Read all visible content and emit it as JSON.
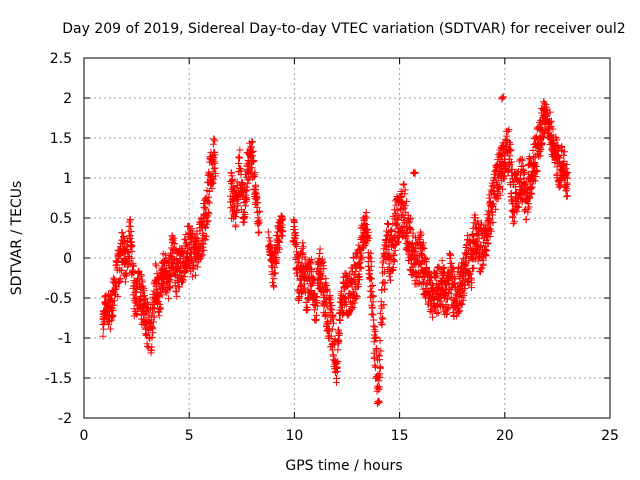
{
  "chart_data": {
    "type": "scatter",
    "title": "Day 209 of 2019, Sidereal Day-to-day VTEC variation (SDTVAR) for receiver oul2",
    "xlabel": "GPS time / hours",
    "ylabel": "SDTVAR / TECUs",
    "xlim": [
      0,
      25
    ],
    "ylim": [
      -2,
      2.5
    ],
    "grid": true,
    "marker": "+",
    "marker_color": "#ff0000",
    "x_ticks": [
      0,
      5,
      10,
      15,
      20,
      25
    ],
    "x_tick_labels": [
      "0",
      "5",
      "10",
      "15",
      "20",
      "25"
    ],
    "y_ticks": [
      -2,
      -1.5,
      -1,
      -0.5,
      0,
      0.5,
      1,
      1.5,
      2,
      2.5
    ],
    "y_tick_labels": [
      "-2",
      "-1.5",
      "-1",
      "-0.5",
      "0",
      "0.5",
      "1",
      "1.5",
      "2",
      "2.5"
    ],
    "series": [
      {
        "name": "SDTVAR",
        "trace_x": [
          0.9,
          1.0,
          1.2,
          1.4,
          1.6,
          1.8,
          2.0,
          2.2,
          2.4,
          2.6,
          2.8,
          3.0,
          3.2,
          3.4,
          3.6,
          3.8,
          4.0,
          4.2,
          4.4,
          4.6,
          4.8,
          5.0,
          5.2,
          5.4,
          5.6,
          5.8,
          6.0,
          6.2,
          7.0,
          7.2,
          7.4,
          7.6,
          7.8,
          8.0,
          8.2,
          8.3,
          8.8,
          9.0,
          9.2,
          9.4,
          10.0,
          10.2,
          10.4,
          10.6,
          10.8,
          11.0,
          11.2,
          11.4,
          11.6,
          11.8,
          12.0,
          12.2,
          12.4,
          12.6,
          12.8,
          13.0,
          13.2,
          13.4,
          13.6,
          13.8,
          14.0,
          14.2,
          14.4,
          14.6,
          14.8,
          15.0,
          15.2,
          15.4,
          15.6,
          15.8,
          16.0,
          16.2,
          16.4,
          16.6,
          16.8,
          17.0,
          17.2,
          17.4,
          17.6,
          17.8,
          18.0,
          18.2,
          18.4,
          18.6,
          18.8,
          19.0,
          19.2,
          19.4,
          19.6,
          19.8,
          20.0,
          20.2,
          20.4,
          20.6,
          20.8,
          21.0,
          21.2,
          21.4,
          21.6,
          21.8,
          22.0,
          22.6,
          22.8,
          23.0
        ],
        "trace_y": [
          -0.9,
          -0.6,
          -0.7,
          -0.5,
          -0.2,
          0.1,
          -0.1,
          0.3,
          -0.5,
          -0.4,
          -0.6,
          -0.8,
          -0.9,
          -0.3,
          -0.5,
          -0.1,
          -0.3,
          0.1,
          -0.2,
          -0.1,
          0.0,
          0.2,
          0.0,
          0.1,
          0.3,
          0.5,
          1.0,
          1.3,
          0.8,
          0.6,
          1.1,
          0.6,
          1.2,
          1.3,
          0.6,
          0.5,
          0.2,
          -0.2,
          0.2,
          0.4,
          0.3,
          -0.3,
          -0.1,
          -0.4,
          -0.2,
          -0.6,
          -0.1,
          -0.4,
          -0.7,
          -0.9,
          -1.4,
          -0.6,
          -0.4,
          -0.5,
          -0.3,
          -0.2,
          0.2,
          0.4,
          -0.1,
          -1.0,
          -1.6,
          -0.4,
          0.2,
          0.0,
          0.4,
          0.5,
          0.6,
          0.3,
          0.1,
          -0.1,
          0.0,
          -0.2,
          -0.4,
          -0.5,
          -0.4,
          -0.3,
          -0.5,
          -0.2,
          -0.5,
          -0.4,
          -0.3,
          0.0,
          -0.1,
          0.3,
          0.1,
          0.2,
          0.4,
          0.7,
          0.9,
          1.1,
          1.2,
          1.4,
          0.7,
          0.9,
          1.0,
          0.7,
          1.0,
          1.2,
          1.4,
          1.7,
          1.8,
          1.1,
          1.2,
          0.9
        ],
        "scatter_spread": [
          0.2,
          0.15,
          0.25,
          0.25,
          0.3,
          0.25,
          0.25,
          0.25,
          0.25,
          0.3,
          0.3,
          0.3,
          0.3,
          0.25,
          0.25,
          0.25,
          0.25,
          0.25,
          0.3,
          0.25,
          0.25,
          0.3,
          0.3,
          0.25,
          0.3,
          0.3,
          0.3,
          0.25,
          0.3,
          0.25,
          0.3,
          0.25,
          0.25,
          0.2,
          0.2,
          0.2,
          0.1,
          0.2,
          0.2,
          0.15,
          0.2,
          0.3,
          0.3,
          0.3,
          0.25,
          0.25,
          0.3,
          0.3,
          0.3,
          0.35,
          0.2,
          0.2,
          0.25,
          0.3,
          0.3,
          0.3,
          0.25,
          0.2,
          0.3,
          0.35,
          0.3,
          0.4,
          0.3,
          0.35,
          0.35,
          0.3,
          0.35,
          0.35,
          0.35,
          0.3,
          0.35,
          0.3,
          0.25,
          0.3,
          0.3,
          0.3,
          0.3,
          0.3,
          0.3,
          0.3,
          0.3,
          0.3,
          0.3,
          0.3,
          0.3,
          0.3,
          0.3,
          0.3,
          0.3,
          0.3,
          0.3,
          0.3,
          0.3,
          0.3,
          0.3,
          0.3,
          0.3,
          0.3,
          0.3,
          0.25,
          0.2,
          0.25,
          0.25,
          0.2
        ],
        "isolated_points": [
          {
            "x": 19.9,
            "y": 2.0
          },
          {
            "x": 15.7,
            "y": 1.07
          },
          {
            "x": 14.0,
            "y": -1.8
          }
        ]
      }
    ]
  }
}
